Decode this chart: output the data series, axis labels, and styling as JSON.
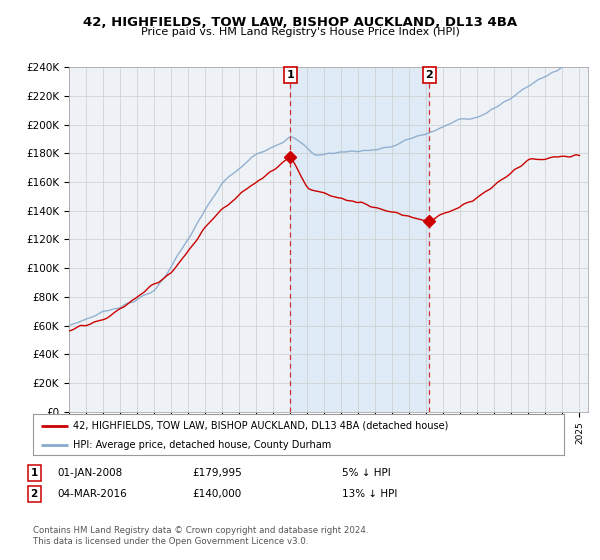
{
  "title": "42, HIGHFIELDS, TOW LAW, BISHOP AUCKLAND, DL13 4BA",
  "subtitle": "Price paid vs. HM Land Registry's House Price Index (HPI)",
  "ylim": [
    0,
    240000
  ],
  "yticks": [
    0,
    20000,
    40000,
    60000,
    80000,
    100000,
    120000,
    140000,
    160000,
    180000,
    200000,
    220000,
    240000
  ],
  "ytick_labels": [
    "£0",
    "£20K",
    "£40K",
    "£60K",
    "£80K",
    "£100K",
    "£120K",
    "£140K",
    "£160K",
    "£180K",
    "£200K",
    "£220K",
    "£240K"
  ],
  "x_start_year": 1995,
  "x_end_year": 2025,
  "vline1_year": 2008.0,
  "vline2_year": 2016.17,
  "marker1_year": 2008.0,
  "marker1_value": 179995,
  "marker2_year": 2016.17,
  "marker2_value": 140000,
  "transaction1": {
    "label": "1",
    "date": "01-JAN-2008",
    "price": "£179,995",
    "hpi": "5% ↓ HPI"
  },
  "transaction2": {
    "label": "2",
    "date": "04-MAR-2016",
    "price": "£140,000",
    "hpi": "13% ↓ HPI"
  },
  "legend_line1": "42, HIGHFIELDS, TOW LAW, BISHOP AUCKLAND, DL13 4BA (detached house)",
  "legend_line2": "HPI: Average price, detached house, County Durham",
  "footer": "Contains HM Land Registry data © Crown copyright and database right 2024.\nThis data is licensed under the Open Government Licence v3.0.",
  "line_color_red": "#cc0000",
  "line_color_blue": "#88aacc",
  "background_color": "#ffffff",
  "plot_bg_color": "#eef2f7",
  "grid_color": "#cccccc",
  "vline_shading": "#d8e8f5"
}
